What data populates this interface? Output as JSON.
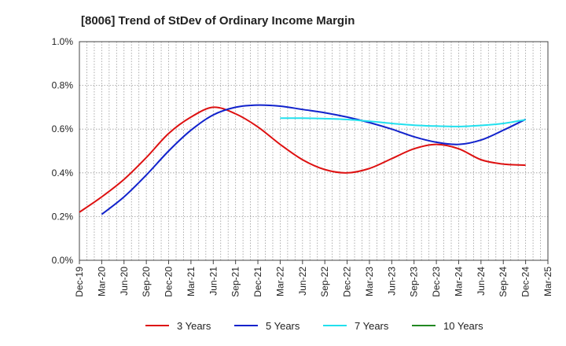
{
  "chart_data": {
    "type": "line",
    "title": "[8006]  Trend of StDev of Ordinary Income Margin",
    "xlabel": "",
    "ylabel": "",
    "x": [
      "Dec-19",
      "Mar-20",
      "Jun-20",
      "Sep-20",
      "Dec-20",
      "Mar-21",
      "Jun-21",
      "Sep-21",
      "Dec-21",
      "Mar-22",
      "Jun-22",
      "Sep-22",
      "Dec-22",
      "Mar-23",
      "Jun-23",
      "Sep-23",
      "Dec-23",
      "Mar-24",
      "Jun-24",
      "Sep-24",
      "Dec-24",
      "Mar-25"
    ],
    "y_ticks": [
      "0.0%",
      "0.2%",
      "0.4%",
      "0.6%",
      "0.8%",
      "1.0%"
    ],
    "ylim": [
      0,
      1.0
    ],
    "grid": true,
    "legend_position": "bottom",
    "series": [
      {
        "name": "3 Years",
        "color": "#dd1111",
        "values": [
          0.22,
          0.29,
          0.37,
          0.47,
          0.58,
          0.655,
          0.7,
          0.67,
          0.61,
          0.53,
          0.46,
          0.415,
          0.4,
          0.42,
          0.465,
          0.51,
          0.53,
          0.51,
          0.46,
          0.44,
          0.435,
          null
        ]
      },
      {
        "name": "5 Years",
        "color": "#1122cc",
        "values": [
          null,
          0.21,
          0.29,
          0.39,
          0.5,
          0.595,
          0.665,
          0.7,
          0.71,
          0.705,
          0.69,
          0.675,
          0.655,
          0.63,
          0.6,
          0.565,
          0.54,
          0.53,
          0.55,
          0.595,
          0.645,
          null
        ]
      },
      {
        "name": "7 Years",
        "color": "#22e0ee",
        "values": [
          null,
          null,
          null,
          null,
          null,
          null,
          null,
          null,
          null,
          0.65,
          0.65,
          0.648,
          0.644,
          0.636,
          0.626,
          0.618,
          0.614,
          0.612,
          0.617,
          0.626,
          0.643,
          null
        ]
      },
      {
        "name": "10 Years",
        "color": "#228822",
        "values": [
          null,
          null,
          null,
          null,
          null,
          null,
          null,
          null,
          null,
          null,
          null,
          null,
          null,
          null,
          null,
          null,
          null,
          null,
          null,
          null,
          null,
          null
        ]
      }
    ]
  }
}
